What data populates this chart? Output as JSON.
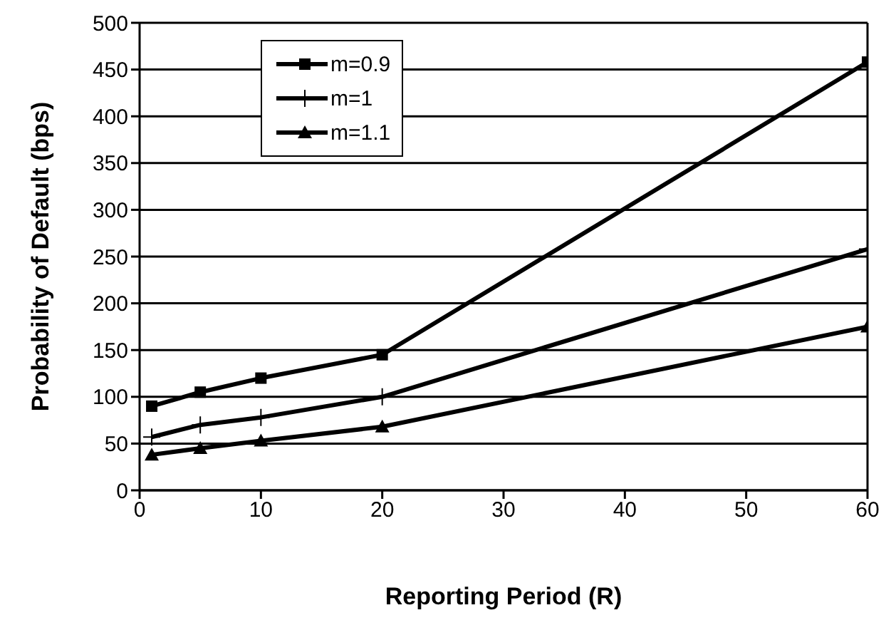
{
  "chart_data": {
    "type": "line",
    "xlabel": "Reporting Period (R)",
    "ylabel": "Probability of Default (bps)",
    "x": [
      1,
      5,
      10,
      20,
      60
    ],
    "series": [
      {
        "name": "m=0.9",
        "color": "#000000",
        "marker": "square",
        "values": [
          90,
          105,
          120,
          145,
          458
        ]
      },
      {
        "name": "m=1",
        "color": "#000000",
        "marker": "cross",
        "values": [
          57,
          70,
          78,
          100,
          258
        ]
      },
      {
        "name": "m=1.1",
        "color": "#000000",
        "marker": "triangle",
        "values": [
          38,
          45,
          53,
          68,
          175
        ]
      }
    ],
    "xlim": [
      0,
      60
    ],
    "xticks": [
      0,
      10,
      20,
      30,
      40,
      50,
      60
    ],
    "ylim": [
      0,
      500
    ],
    "yticks": [
      0,
      50,
      100,
      150,
      200,
      250,
      300,
      350,
      400,
      450,
      500
    ],
    "grid": "y",
    "legend": "top left",
    "line_style": "solid"
  }
}
